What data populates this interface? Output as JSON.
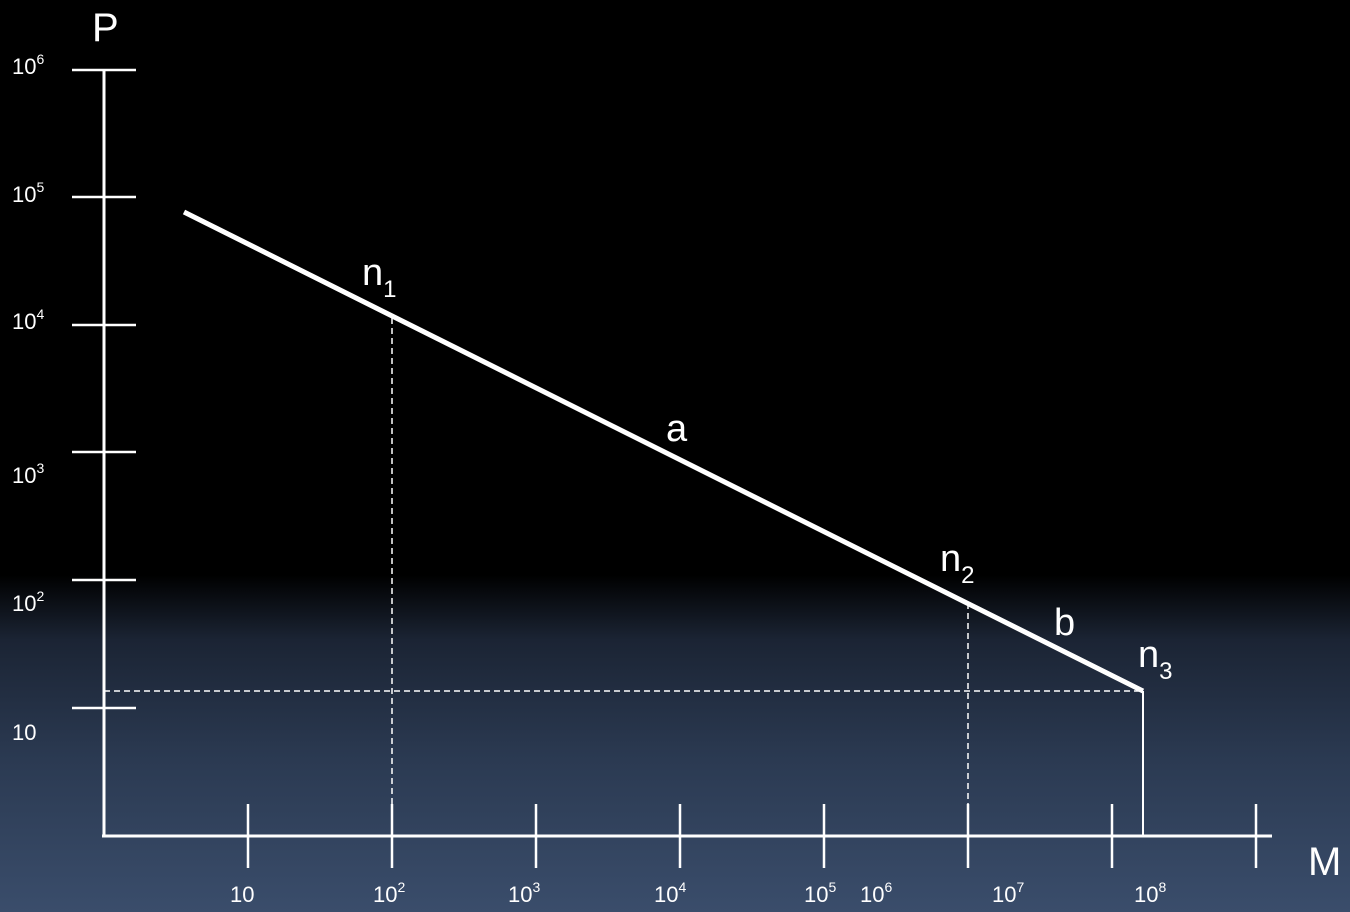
{
  "axes": {
    "y_title": "P",
    "x_title": "M"
  },
  "y_ticks": [
    {
      "base": "10",
      "exp": "6"
    },
    {
      "base": "10",
      "exp": "5"
    },
    {
      "base": "10",
      "exp": "4"
    },
    {
      "base": "10",
      "exp": "3"
    },
    {
      "base": "10",
      "exp": "2"
    },
    {
      "base": "10",
      "exp": ""
    }
  ],
  "x_ticks": [
    {
      "base": "10",
      "exp": ""
    },
    {
      "base": "10",
      "exp": "2"
    },
    {
      "base": "10",
      "exp": "3"
    },
    {
      "base": "10",
      "exp": "4"
    },
    {
      "base": "10",
      "exp": "5"
    },
    {
      "base": "10",
      "exp": "6"
    },
    {
      "base": "10",
      "exp": "7"
    },
    {
      "base": "10",
      "exp": "8"
    }
  ],
  "labels": {
    "n1": {
      "base": "n",
      "sub": "1"
    },
    "n2": {
      "base": "n",
      "sub": "2"
    },
    "n3": {
      "base": "n",
      "sub": "3"
    },
    "a": "a",
    "b": "b"
  },
  "colors": {
    "foreground": "#ffffff",
    "background_top": "#000000",
    "background_bottom": "#3a4d6b"
  }
}
